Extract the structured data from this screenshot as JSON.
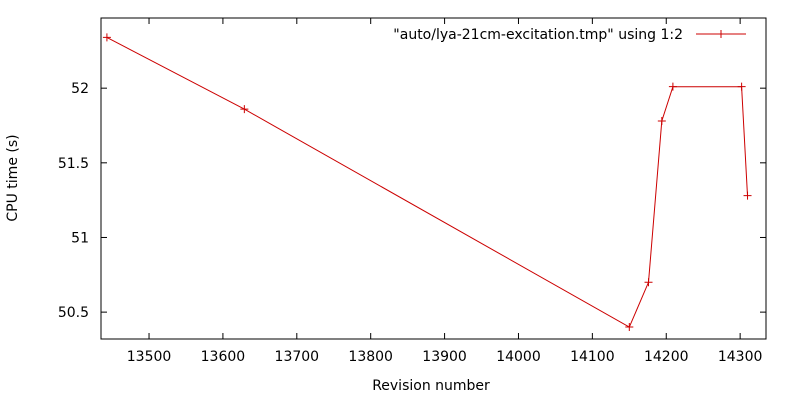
{
  "chart_data": {
    "type": "line",
    "title": "",
    "xlabel": "Revision number",
    "ylabel": "CPU time (s)",
    "xlim": [
      13435,
      14335
    ],
    "ylim": [
      50.32,
      52.47
    ],
    "x_ticks": [
      13500,
      13600,
      13700,
      13800,
      13900,
      14000,
      14100,
      14200,
      14300
    ],
    "x_tick_labels": [
      "13500",
      "13600",
      "13700",
      "13800",
      "13900",
      "14000",
      "14100",
      "14200",
      "14300"
    ],
    "y_ticks": [
      50.5,
      51,
      51.5,
      52
    ],
    "y_tick_labels": [
      "50.5",
      "51",
      "51.5",
      "52"
    ],
    "grid": false,
    "legend_position": "top-right",
    "series": [
      {
        "name": "\"auto/lya-21cm-excitation.tmp\" using 1:2",
        "color": "#cc0000",
        "marker": "plus",
        "x": [
          13443,
          13629,
          14150,
          14176,
          14194,
          14209,
          14302,
          14310
        ],
        "y": [
          52.34,
          51.86,
          50.4,
          50.7,
          51.78,
          52.01,
          52.01,
          51.28
        ]
      }
    ]
  }
}
